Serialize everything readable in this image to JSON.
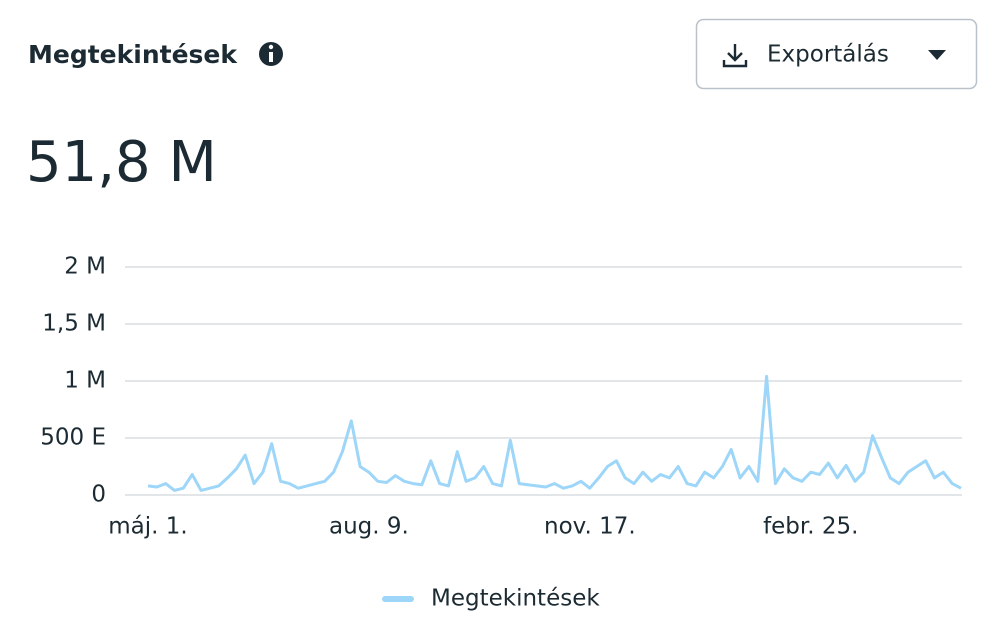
{
  "header": {
    "title": "Megtekintések",
    "total": "51,8 M",
    "button": "Exportálás"
  },
  "chart_data": {
    "type": "line",
    "categories": [
      "máj. 1.",
      null,
      null,
      null,
      null,
      null,
      null,
      null,
      null,
      null,
      null,
      null,
      null,
      null,
      null,
      null,
      null,
      null,
      null,
      null,
      null,
      null,
      null,
      null,
      null,
      "aug. 9.",
      null,
      null,
      null,
      null,
      null,
      null,
      null,
      null,
      null,
      null,
      null,
      null,
      null,
      null,
      null,
      null,
      null,
      null,
      null,
      null,
      null,
      null,
      null,
      null,
      "nov. 17.",
      null,
      null,
      null,
      null,
      null,
      null,
      null,
      null,
      null,
      null,
      null,
      null,
      null,
      null,
      null,
      null,
      null,
      null,
      null,
      null,
      null,
      null,
      null,
      null,
      "febr. 25.",
      null,
      null,
      null,
      null,
      null,
      null,
      null,
      null,
      null,
      null,
      null,
      null,
      null,
      null,
      null,
      null,
      null
    ],
    "series": [
      {
        "name": "Megtekintések",
        "color": "#9dd6f8",
        "values": [
          80000,
          70000,
          100000,
          40000,
          60000,
          180000,
          40000,
          60000,
          80000,
          150000,
          230000,
          350000,
          100000,
          200000,
          450000,
          120000,
          100000,
          60000,
          80000,
          100000,
          120000,
          200000,
          380000,
          650000,
          250000,
          200000,
          120000,
          110000,
          170000,
          120000,
          100000,
          90000,
          300000,
          100000,
          80000,
          380000,
          120000,
          150000,
          250000,
          100000,
          80000,
          480000,
          100000,
          90000,
          80000,
          70000,
          100000,
          60000,
          80000,
          120000,
          60000,
          150000,
          250000,
          300000,
          150000,
          100000,
          200000,
          120000,
          180000,
          150000,
          250000,
          100000,
          80000,
          200000,
          150000,
          250000,
          400000,
          150000,
          250000,
          120000,
          1040000,
          100000,
          230000,
          150000,
          120000,
          200000,
          180000,
          280000,
          150000,
          260000,
          120000,
          200000,
          520000,
          330000,
          150000,
          100000,
          200000,
          250000,
          300000,
          150000,
          200000,
          100000,
          60000
        ]
      }
    ],
    "ylim": [
      0,
      2000000
    ],
    "yticks": [
      0,
      {
        "value": 500000,
        "label": "500 E"
      },
      {
        "value": 1000000,
        "label": "1 M"
      },
      {
        "value": 1500000,
        "label": "1,5 M"
      },
      {
        "value": 2000000,
        "label": "2 M"
      }
    ],
    "grid": true,
    "legend": "bottom"
  }
}
